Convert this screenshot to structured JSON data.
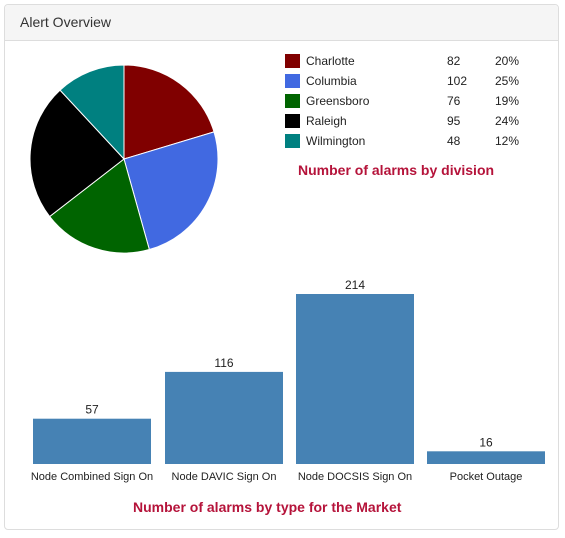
{
  "panel": {
    "title": "Alert Overview"
  },
  "chart_data": [
    {
      "type": "pie",
      "title": "Number of alarms by division",
      "slices": [
        {
          "label": "Charlotte",
          "value": 82,
          "percent": "20%",
          "color": "#800000"
        },
        {
          "label": "Columbia",
          "value": 102,
          "percent": "25%",
          "color": "#4169e1"
        },
        {
          "label": "Greensboro",
          "value": 76,
          "percent": "19%",
          "color": "#006400"
        },
        {
          "label": "Raleigh",
          "value": 95,
          "percent": "24%",
          "color": "#000000"
        },
        {
          "label": "Wilmington",
          "value": 48,
          "percent": "12%",
          "color": "#008080"
        }
      ],
      "legend_position": "right"
    },
    {
      "type": "bar",
      "title": "Number of alarms by type for the Market",
      "categories": [
        "Node Combined Sign On",
        "Node DAVIC Sign On",
        "Node DOCSIS Sign On",
        "Pocket Outage"
      ],
      "values": [
        57,
        116,
        214,
        16
      ],
      "color": "#4682b4",
      "data_labels": true,
      "grid": false
    }
  ]
}
